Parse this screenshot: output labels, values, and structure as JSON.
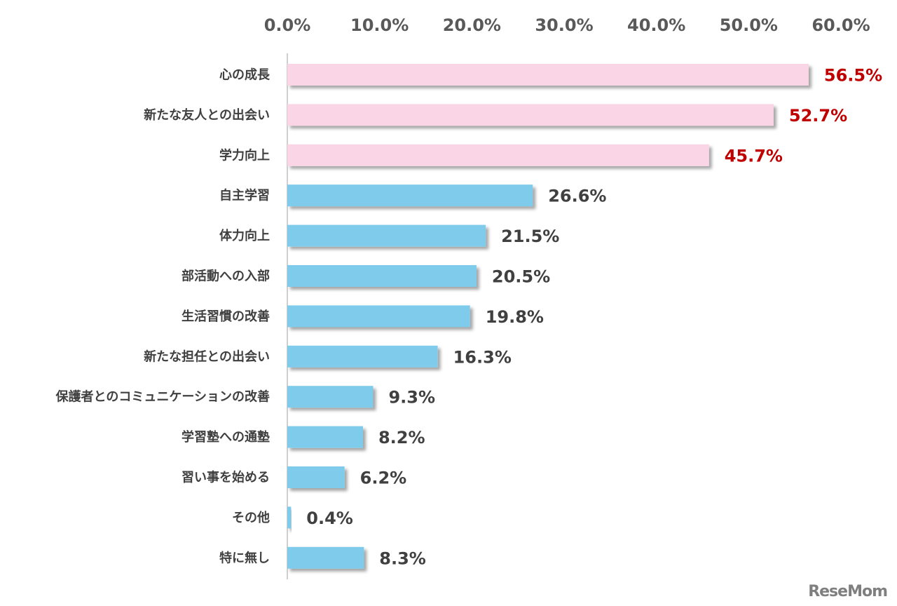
{
  "chart_data": {
    "type": "bar",
    "orientation": "horizontal",
    "categories": [
      "心の成長",
      "新たな友人との出会い",
      "学力向上",
      "自主学習",
      "体力向上",
      "部活動への入部",
      "生活習慣の改善",
      "新たな担任との出会い",
      "保護者とのコミュニケーションの改善",
      "学習塾への通塾",
      "習い事を始める",
      "その他",
      "特に無し"
    ],
    "values": [
      56.5,
      52.7,
      45.7,
      26.6,
      21.5,
      20.5,
      19.8,
      16.3,
      9.3,
      8.2,
      6.2,
      0.4,
      8.3
    ],
    "value_labels": [
      "56.5%",
      "52.7%",
      "45.7%",
      "26.6%",
      "21.5%",
      "20.5%",
      "19.8%",
      "16.3%",
      "9.3%",
      "8.2%",
      "6.2%",
      "0.4%",
      "8.3%"
    ],
    "highlight_count": 3,
    "xlim": [
      0,
      60
    ],
    "x_ticks": [
      "0.0%",
      "10.0%",
      "20.0%",
      "30.0%",
      "40.0%",
      "50.0%",
      "60.0%"
    ],
    "tick_position": "top",
    "grid": false,
    "title": "",
    "xlabel": "",
    "ylabel": ""
  },
  "colors": {
    "highlight_bar": "#f9d5e6",
    "normal_bar": "#7ecbeb",
    "highlight_label": "#c00000",
    "normal_label": "#404040",
    "axis": "#bfbfbf"
  },
  "watermark": "ReseMom"
}
